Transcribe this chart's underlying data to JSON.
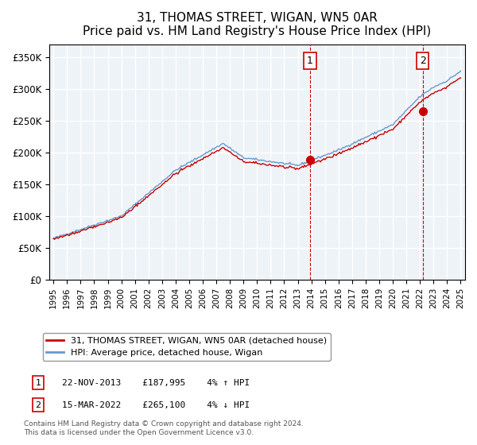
{
  "title": "31, THOMAS STREET, WIGAN, WN5 0AR",
  "subtitle": "Price paid vs. HM Land Registry's House Price Index (HPI)",
  "ylabel_values": [
    "£0",
    "£50K",
    "£100K",
    "£150K",
    "£200K",
    "£250K",
    "£300K",
    "£350K"
  ],
  "ylim": [
    0,
    370000
  ],
  "yticks": [
    0,
    50000,
    100000,
    150000,
    200000,
    250000,
    300000,
    350000
  ],
  "xmin_year": 1995,
  "xmax_year": 2025,
  "xtick_years": [
    1995,
    1996,
    1997,
    1998,
    1999,
    2000,
    2001,
    2002,
    2003,
    2004,
    2005,
    2006,
    2007,
    2008,
    2009,
    2010,
    2011,
    2012,
    2013,
    2014,
    2015,
    2016,
    2017,
    2018,
    2019,
    2020,
    2021,
    2022,
    2023,
    2024,
    2025
  ],
  "sale1_date": 2013.9,
  "sale1_price": 187995,
  "sale1_label": "1",
  "sale1_note": "22-NOV-2013    £187,995    4% ↑ HPI",
  "sale2_date": 2022.2,
  "sale2_price": 265100,
  "sale2_label": "2",
  "sale2_note": "15-MAR-2022    £265,100    4% ↓ HPI",
  "hpi_color": "#6699cc",
  "price_color": "#cc0000",
  "vline_color": "#cc0000",
  "marker_color": "#cc0000",
  "legend_label_price": "31, THOMAS STREET, WIGAN, WN5 0AR (detached house)",
  "legend_label_hpi": "HPI: Average price, detached house, Wigan",
  "footnote": "Contains HM Land Registry data © Crown copyright and database right 2024.\nThis data is licensed under the Open Government Licence v3.0.",
  "background_color": "#ffffff",
  "plot_bg_color": "#eef3f8",
  "grid_color": "#ffffff",
  "title_fontsize": 11,
  "subtitle_fontsize": 10
}
